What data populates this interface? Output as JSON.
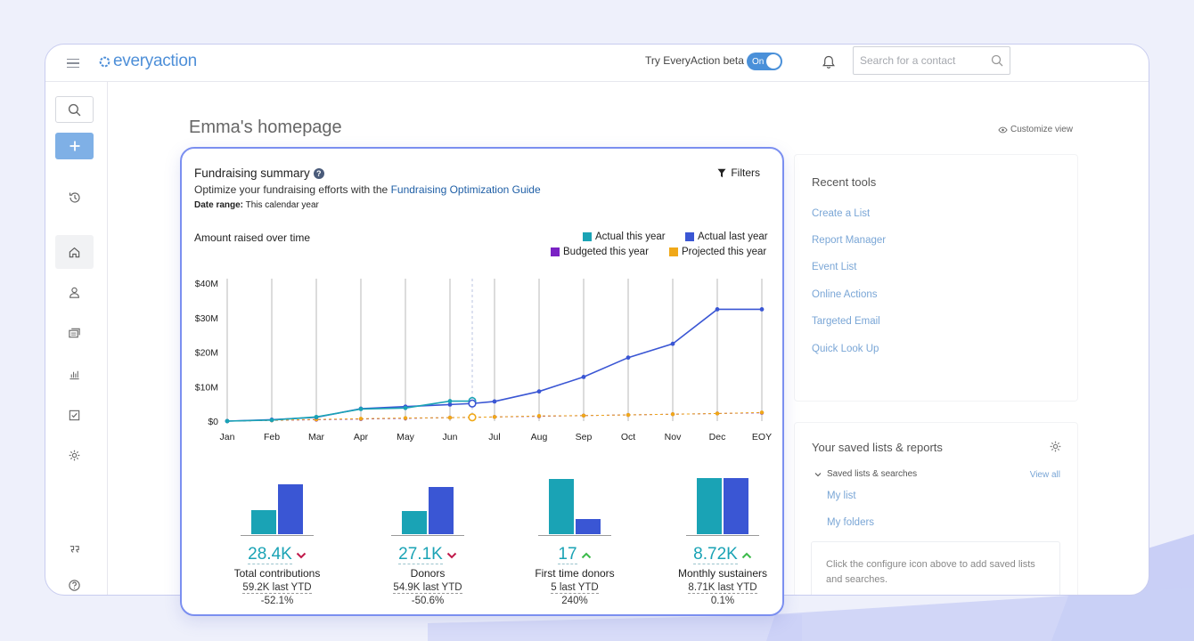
{
  "app": {
    "logo_text": "everyaction",
    "beta_label": "Try EveryAction beta",
    "beta_toggle": "On",
    "search_placeholder": "Search for a contact"
  },
  "page": {
    "title": "Emma's homepage",
    "customize_label": "Customize view"
  },
  "summary": {
    "title": "Fundraising summary",
    "subtitle_prefix": "Optimize your fundraising efforts with the",
    "subtitle_link": "Fundraising Optimization Guide",
    "date_range_label": "Date range:",
    "date_range_value": "This calendar year",
    "filters_label": "Filters",
    "chart_title": "Amount raised over time"
  },
  "chart_data": {
    "type": "line",
    "title": "Amount raised over time",
    "xlabel": "",
    "ylabel": "",
    "categories": [
      "Jan",
      "Feb",
      "Mar",
      "Apr",
      "May",
      "Jun",
      "Jul",
      "Aug",
      "Sep",
      "Oct",
      "Nov",
      "Dec",
      "EOY"
    ],
    "y_ticks": [
      "$0",
      "$10M",
      "$20M",
      "$30M",
      "$40M"
    ],
    "ylim": [
      0,
      40
    ],
    "series": [
      {
        "name": "Actual this year",
        "color": "#1aa3b5",
        "x": [
          0,
          1,
          2,
          3,
          4,
          5,
          5.5
        ],
        "values": [
          0,
          0.3,
          1.2,
          3.5,
          3.8,
          5.8,
          5.8
        ]
      },
      {
        "name": "Actual last year",
        "color": "#3a56d4",
        "x": [
          0,
          1,
          2,
          3,
          4,
          5,
          5.5,
          6,
          7,
          8,
          9,
          10,
          11,
          12
        ],
        "values": [
          0,
          0.4,
          1.1,
          3.6,
          4.2,
          4.8,
          5.1,
          5.7,
          8.6,
          12.8,
          18.4,
          22.4,
          32.4,
          32.4
        ]
      },
      {
        "name": "Budgeted this year",
        "color": "#7a22c4",
        "x": [
          0,
          1,
          2,
          3,
          4,
          5,
          5.5,
          6,
          7,
          8,
          9,
          10,
          11,
          12
        ],
        "values": [
          0,
          0.2,
          0.4,
          0.6,
          0.8,
          1.0,
          1.1,
          1.2,
          1.4,
          1.6,
          1.8,
          2.0,
          2.2,
          2.4
        ]
      },
      {
        "name": "Projected this year",
        "color": "#f0a818",
        "x": [
          0,
          1,
          2,
          3,
          4,
          5,
          5.5,
          6,
          7,
          8,
          9,
          10,
          11,
          12
        ],
        "values": [
          0,
          0.2,
          0.5,
          0.7,
          0.9,
          1.0,
          1.1,
          1.2,
          1.5,
          1.6,
          1.8,
          2.0,
          2.2,
          2.5
        ]
      }
    ]
  },
  "metrics": [
    {
      "value": "28.4K",
      "trend": "down",
      "label": "Total contributions",
      "last": "59.2K last YTD",
      "pct": "-52.1%",
      "this_bar": 34,
      "last_bar": 70
    },
    {
      "value": "27.1K",
      "trend": "down",
      "label": "Donors",
      "last": "54.9K last YTD",
      "pct": "-50.6%",
      "this_bar": 32,
      "last_bar": 66
    },
    {
      "value": "17",
      "trend": "up",
      "label": "First time donors",
      "last": "5 last YTD",
      "pct": "240%",
      "this_bar": 77,
      "last_bar": 21
    },
    {
      "value": "8.72K",
      "trend": "up",
      "label": "Monthly sustainers",
      "last": "8.71K last YTD",
      "pct": "0.1%",
      "this_bar": 79,
      "last_bar": 79
    }
  ],
  "recent_tools": {
    "title": "Recent tools",
    "items": [
      "Create a List",
      "Report Manager",
      "Event List",
      "Online Actions",
      "Targeted Email",
      "Quick Look Up"
    ]
  },
  "saved_lists": {
    "title": "Your saved lists & reports",
    "section": "Saved lists & searches",
    "view_all": "View all",
    "items": [
      "My list",
      "My folders"
    ],
    "hint": "Click the configure icon above to add saved lists and searches."
  },
  "colors": {
    "this_year": "#1aa3b5",
    "last_year": "#3a56d4",
    "down": "#c0194a",
    "up": "#3cba4a",
    "accent": "#4a90d9"
  }
}
